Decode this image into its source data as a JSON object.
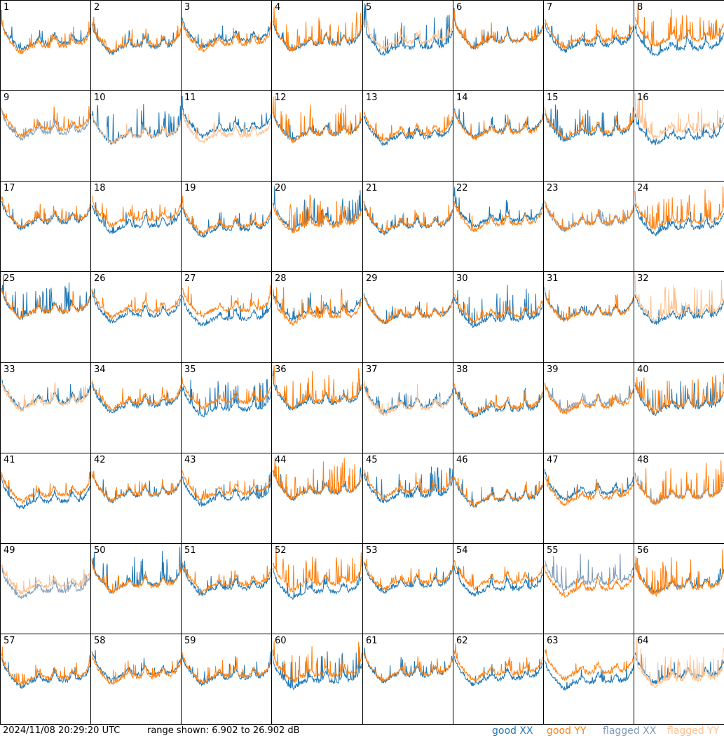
{
  "chart_data": {
    "type": "line",
    "layout": "8x8 small-multiples grid",
    "panels": [
      "1",
      "2",
      "3",
      "4",
      "5",
      "6",
      "7",
      "8",
      "9",
      "10",
      "11",
      "12",
      "13",
      "14",
      "15",
      "16",
      "17",
      "18",
      "19",
      "20",
      "21",
      "22",
      "23",
      "24",
      "25",
      "26",
      "27",
      "28",
      "29",
      "30",
      "31",
      "32",
      "33",
      "34",
      "35",
      "36",
      "37",
      "38",
      "39",
      "40",
      "41",
      "42",
      "43",
      "44",
      "45",
      "46",
      "47",
      "48",
      "49",
      "50",
      "51",
      "52",
      "53",
      "54",
      "55",
      "56",
      "57",
      "58",
      "59",
      "60",
      "61",
      "62",
      "63",
      "64"
    ],
    "y_range_db": [
      6.902,
      26.902
    ],
    "series": [
      {
        "name": "good XX",
        "color": "#1f77b4"
      },
      {
        "name": "good YY",
        "color": "#ff7f0e"
      },
      {
        "name": "flagged XX",
        "color": "#7f9bb8"
      },
      {
        "name": "flagged YY",
        "color": "#ffbf8a"
      }
    ],
    "flagged_xx_panels": [
      9,
      23,
      39,
      48,
      49,
      55
    ],
    "flagged_yy_panels": [
      5,
      10,
      11,
      16,
      32,
      33,
      37,
      49,
      64
    ],
    "grid": false,
    "legend_position": "bottom-right"
  },
  "footer": {
    "timestamp": "2024/11/08 20:29:20 UTC",
    "range": "range shown: 6.902 to 26.902 dB",
    "legend_good_xx": "good XX",
    "legend_good_yy": "good YY",
    "legend_flagged_xx": "flagged XX",
    "legend_flagged_yy": "flagged YY"
  }
}
